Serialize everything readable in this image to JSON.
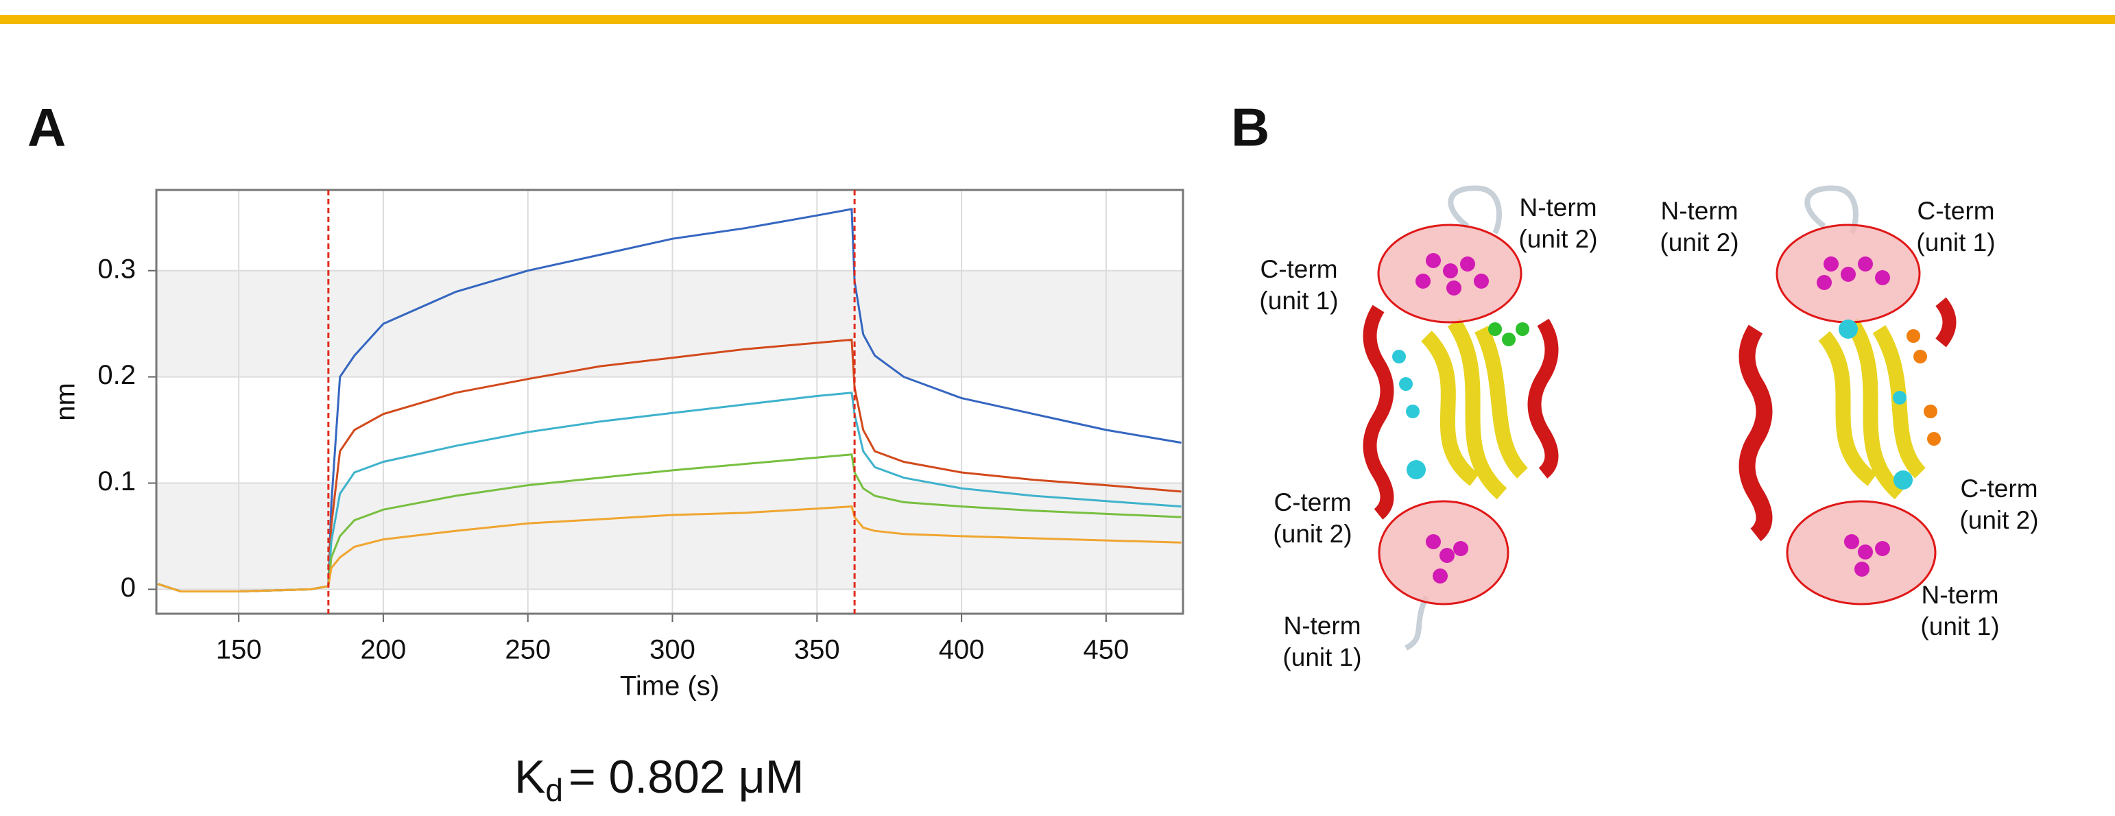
{
  "chart_data": {
    "type": "line",
    "xlabel": "Time (s)",
    "ylabel": "nm",
    "x": [
      122,
      130,
      150,
      175,
      181,
      182,
      185,
      190,
      200,
      225,
      250,
      275,
      300,
      325,
      350,
      362,
      363,
      366,
      370,
      380,
      400,
      425,
      450,
      476
    ],
    "series": [
      {
        "color": "#3566c0",
        "values": [
          0.005,
          -0.002,
          -0.002,
          0,
          0.003,
          0.08,
          0.2,
          0.22,
          0.25,
          0.28,
          0.3,
          0.315,
          0.33,
          0.34,
          0.352,
          0.358,
          0.29,
          0.24,
          0.22,
          0.2,
          0.18,
          0.165,
          0.15,
          0.138
        ]
      },
      {
        "color": "#d24a1c",
        "values": [
          0.005,
          -0.002,
          -0.002,
          0,
          0.003,
          0.06,
          0.13,
          0.15,
          0.165,
          0.185,
          0.198,
          0.21,
          0.218,
          0.226,
          0.232,
          0.235,
          0.19,
          0.15,
          0.13,
          0.12,
          0.11,
          0.103,
          0.098,
          0.092
        ]
      },
      {
        "color": "#3fb2cc",
        "values": [
          0.005,
          -0.002,
          -0.002,
          0,
          0.003,
          0.045,
          0.09,
          0.11,
          0.12,
          0.135,
          0.148,
          0.158,
          0.166,
          0.174,
          0.182,
          0.185,
          0.165,
          0.13,
          0.115,
          0.105,
          0.095,
          0.088,
          0.083,
          0.078
        ]
      },
      {
        "color": "#78bf40",
        "values": [
          0.005,
          -0.002,
          -0.002,
          0,
          0.003,
          0.03,
          0.05,
          0.065,
          0.075,
          0.088,
          0.098,
          0.105,
          0.112,
          0.118,
          0.124,
          0.127,
          0.11,
          0.095,
          0.088,
          0.082,
          0.078,
          0.074,
          0.071,
          0.068
        ]
      },
      {
        "color": "#f0a530",
        "values": [
          0.005,
          -0.002,
          -0.002,
          0,
          0.003,
          0.02,
          0.03,
          0.04,
          0.047,
          0.055,
          0.062,
          0.066,
          0.07,
          0.072,
          0.076,
          0.078,
          0.068,
          0.058,
          0.055,
          0.052,
          0.05,
          0.048,
          0.046,
          0.044
        ]
      }
    ],
    "xlim": [
      121.5,
      476.6
    ],
    "ylim": [
      -0.023,
      0.376
    ],
    "xticks": [
      150,
      200,
      250,
      300,
      350,
      400,
      450
    ],
    "yticks": [
      0,
      0.1,
      0.2,
      0.3
    ],
    "vlines": [
      181,
      363
    ],
    "vline_color": "#e02a1a",
    "grid": true
  },
  "panel_a": {
    "label": "A",
    "kd_symbol": "K",
    "kd_subscript": "d",
    "kd_text": "= 0.802 μM"
  },
  "panel_b": {
    "label": "B",
    "structures": [
      {
        "labels": [
          [
            "N-term",
            "(unit 2)"
          ],
          [
            "C-term",
            "(unit 1)"
          ],
          [
            "C-term",
            "(unit 2)"
          ],
          [
            "N-term",
            "(unit 1)"
          ]
        ]
      },
      {
        "labels": [
          [
            "N-term",
            "(unit 2)"
          ],
          [
            "C-term",
            "(unit 1)"
          ],
          [
            "C-term",
            "(unit 2)"
          ],
          [
            "N-term",
            "(unit 1)"
          ]
        ]
      }
    ]
  }
}
